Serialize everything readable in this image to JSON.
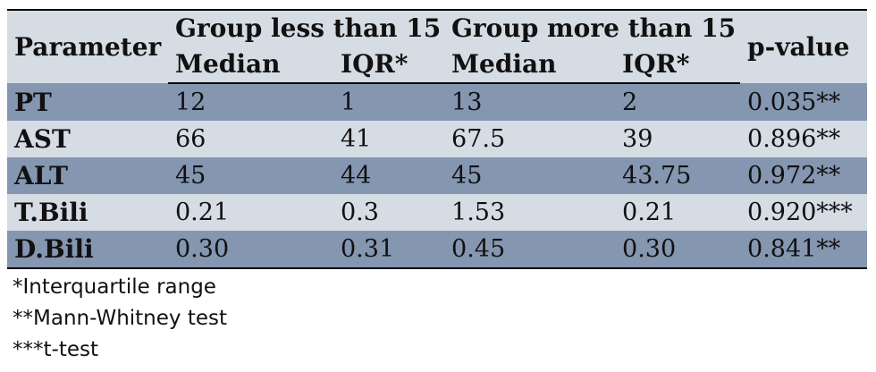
{
  "table": {
    "header": {
      "parameter": "Parameter",
      "group_less": "Group less than 15",
      "group_more": "Group more than 15",
      "pvalue": "p-value",
      "median_less": "Median",
      "iqr_less": "IQR*",
      "median_more": "Median",
      "iqr_more": "IQR*"
    },
    "rows": [
      {
        "param": "PT",
        "median_less": "12",
        "iqr_less": "1",
        "median_more": "13",
        "iqr_more": "2",
        "pvalue": "0.035**"
      },
      {
        "param": "AST",
        "median_less": "66",
        "iqr_less": "41",
        "median_more": "67.5",
        "iqr_more": "39",
        "pvalue": "0.896**"
      },
      {
        "param": "ALT",
        "median_less": "45",
        "iqr_less": "44",
        "median_more": "45",
        "iqr_more": "43.75",
        "pvalue": "0.972**"
      },
      {
        "param": "T.Bili",
        "median_less": "0.21",
        "iqr_less": "0.3",
        "median_more": "1.53",
        "iqr_more": "0.21",
        "pvalue": "0.920***"
      },
      {
        "param": "D.Bili",
        "median_less": "0.30",
        "iqr_less": "0.31",
        "median_more": "0.45",
        "iqr_more": "0.30",
        "pvalue": "0.841**"
      }
    ]
  },
  "footnotes": [
    "*Interquartile range",
    "**Mann-Whitney test",
    "***t-test"
  ],
  "colors": {
    "light_row": "#d6dce4",
    "dark_row": "#8496b0"
  }
}
